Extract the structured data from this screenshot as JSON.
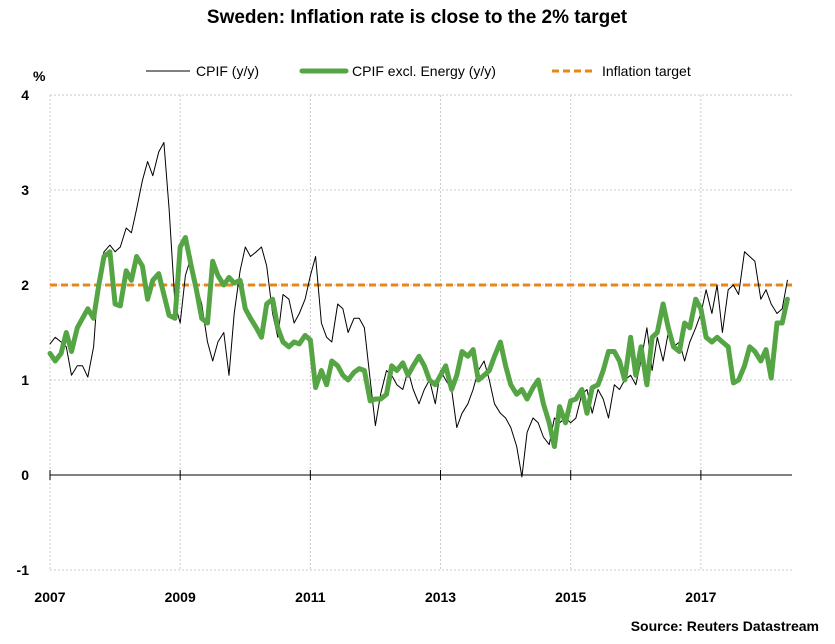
{
  "chart_data": {
    "type": "line",
    "title": "Sweden: Inflation rate is close to the 2% target",
    "ylabel": "%",
    "xlabel": "",
    "ylim": [
      -1,
      4
    ],
    "xlim": [
      2007.0,
      2018.4
    ],
    "y_ticks": [
      -1,
      0,
      1,
      2,
      3,
      4
    ],
    "x_ticks": [
      2007,
      2009,
      2011,
      2013,
      2015,
      2017
    ],
    "grid": "dotted",
    "legend_position": "top",
    "source": "Source: Reuters Datastream",
    "series": [
      {
        "name": "CPIF (y/y)",
        "color": "#000000",
        "points": [
          [
            2007.0,
            1.38
          ],
          [
            2007.08,
            1.45
          ],
          [
            2007.17,
            1.4
          ],
          [
            2007.25,
            1.35
          ],
          [
            2007.33,
            1.05
          ],
          [
            2007.42,
            1.15
          ],
          [
            2007.5,
            1.15
          ],
          [
            2007.58,
            1.03
          ],
          [
            2007.67,
            1.35
          ],
          [
            2007.75,
            2.1
          ],
          [
            2007.83,
            2.35
          ],
          [
            2007.92,
            2.42
          ],
          [
            2008.0,
            2.35
          ],
          [
            2008.08,
            2.4
          ],
          [
            2008.17,
            2.6
          ],
          [
            2008.25,
            2.55
          ],
          [
            2008.33,
            2.8
          ],
          [
            2008.42,
            3.1
          ],
          [
            2008.5,
            3.3
          ],
          [
            2008.58,
            3.15
          ],
          [
            2008.67,
            3.4
          ],
          [
            2008.75,
            3.5
          ],
          [
            2008.83,
            2.8
          ],
          [
            2008.92,
            1.8
          ],
          [
            2009.0,
            1.6
          ],
          [
            2009.08,
            2.1
          ],
          [
            2009.17,
            2.3
          ],
          [
            2009.25,
            2.0
          ],
          [
            2009.33,
            1.8
          ],
          [
            2009.42,
            1.4
          ],
          [
            2009.5,
            1.2
          ],
          [
            2009.58,
            1.4
          ],
          [
            2009.67,
            1.5
          ],
          [
            2009.75,
            1.05
          ],
          [
            2009.83,
            1.7
          ],
          [
            2009.92,
            2.15
          ],
          [
            2010.0,
            2.4
          ],
          [
            2010.08,
            2.3
          ],
          [
            2010.17,
            2.35
          ],
          [
            2010.25,
            2.4
          ],
          [
            2010.33,
            2.2
          ],
          [
            2010.42,
            1.7
          ],
          [
            2010.5,
            1.45
          ],
          [
            2010.58,
            1.9
          ],
          [
            2010.67,
            1.85
          ],
          [
            2010.75,
            1.6
          ],
          [
            2010.83,
            1.7
          ],
          [
            2010.92,
            1.85
          ],
          [
            2011.0,
            2.1
          ],
          [
            2011.08,
            2.3
          ],
          [
            2011.17,
            1.6
          ],
          [
            2011.25,
            1.45
          ],
          [
            2011.33,
            1.4
          ],
          [
            2011.42,
            1.8
          ],
          [
            2011.5,
            1.75
          ],
          [
            2011.58,
            1.5
          ],
          [
            2011.67,
            1.65
          ],
          [
            2011.75,
            1.65
          ],
          [
            2011.83,
            1.55
          ],
          [
            2011.92,
            1.0
          ],
          [
            2012.0,
            0.52
          ],
          [
            2012.08,
            0.85
          ],
          [
            2012.17,
            1.1
          ],
          [
            2012.25,
            1.05
          ],
          [
            2012.33,
            0.95
          ],
          [
            2012.42,
            0.9
          ],
          [
            2012.5,
            1.1
          ],
          [
            2012.58,
            0.9
          ],
          [
            2012.67,
            0.75
          ],
          [
            2012.75,
            0.9
          ],
          [
            2012.83,
            1.0
          ],
          [
            2012.92,
            0.75
          ],
          [
            2013.0,
            1.1
          ],
          [
            2013.08,
            1.0
          ],
          [
            2013.17,
            0.9
          ],
          [
            2013.25,
            0.5
          ],
          [
            2013.33,
            0.65
          ],
          [
            2013.42,
            0.75
          ],
          [
            2013.5,
            0.9
          ],
          [
            2013.58,
            1.1
          ],
          [
            2013.67,
            1.2
          ],
          [
            2013.75,
            1.0
          ],
          [
            2013.83,
            0.75
          ],
          [
            2013.92,
            0.65
          ],
          [
            2014.0,
            0.6
          ],
          [
            2014.08,
            0.5
          ],
          [
            2014.17,
            0.3
          ],
          [
            2014.25,
            -0.02
          ],
          [
            2014.33,
            0.45
          ],
          [
            2014.42,
            0.6
          ],
          [
            2014.5,
            0.55
          ],
          [
            2014.58,
            0.4
          ],
          [
            2014.67,
            0.32
          ],
          [
            2014.75,
            0.6
          ],
          [
            2014.83,
            0.55
          ],
          [
            2014.92,
            0.6
          ],
          [
            2015.0,
            0.55
          ],
          [
            2015.08,
            0.6
          ],
          [
            2015.17,
            0.85
          ],
          [
            2015.25,
            0.9
          ],
          [
            2015.33,
            0.65
          ],
          [
            2015.42,
            0.9
          ],
          [
            2015.5,
            0.8
          ],
          [
            2015.58,
            0.6
          ],
          [
            2015.67,
            0.95
          ],
          [
            2015.75,
            0.9
          ],
          [
            2015.83,
            1.0
          ],
          [
            2015.92,
            1.05
          ],
          [
            2016.0,
            0.95
          ],
          [
            2016.08,
            1.2
          ],
          [
            2016.17,
            1.55
          ],
          [
            2016.25,
            1.1
          ],
          [
            2016.33,
            1.45
          ],
          [
            2016.42,
            1.2
          ],
          [
            2016.5,
            1.5
          ],
          [
            2016.58,
            1.35
          ],
          [
            2016.67,
            1.4
          ],
          [
            2016.75,
            1.2
          ],
          [
            2016.83,
            1.4
          ],
          [
            2016.92,
            1.55
          ],
          [
            2017.0,
            1.7
          ],
          [
            2017.08,
            1.95
          ],
          [
            2017.17,
            1.7
          ],
          [
            2017.25,
            2.0
          ],
          [
            2017.33,
            1.5
          ],
          [
            2017.42,
            1.95
          ],
          [
            2017.5,
            2.0
          ],
          [
            2017.58,
            1.9
          ],
          [
            2017.67,
            2.35
          ],
          [
            2017.75,
            2.3
          ],
          [
            2017.83,
            2.25
          ],
          [
            2017.92,
            1.85
          ],
          [
            2018.0,
            1.95
          ],
          [
            2018.08,
            1.8
          ],
          [
            2018.17,
            1.7
          ],
          [
            2018.25,
            1.75
          ],
          [
            2018.33,
            2.05
          ]
        ]
      },
      {
        "name": "CPIF excl. Energy (y/y)",
        "color": "#55a545",
        "points": [
          [
            2007.0,
            1.28
          ],
          [
            2007.08,
            1.2
          ],
          [
            2007.17,
            1.28
          ],
          [
            2007.25,
            1.5
          ],
          [
            2007.33,
            1.3
          ],
          [
            2007.42,
            1.55
          ],
          [
            2007.5,
            1.65
          ],
          [
            2007.58,
            1.75
          ],
          [
            2007.67,
            1.65
          ],
          [
            2007.75,
            2.0
          ],
          [
            2007.83,
            2.3
          ],
          [
            2007.92,
            2.35
          ],
          [
            2008.0,
            1.8
          ],
          [
            2008.08,
            1.78
          ],
          [
            2008.17,
            2.15
          ],
          [
            2008.25,
            2.05
          ],
          [
            2008.33,
            2.3
          ],
          [
            2008.42,
            2.2
          ],
          [
            2008.5,
            1.85
          ],
          [
            2008.58,
            2.05
          ],
          [
            2008.67,
            2.12
          ],
          [
            2008.75,
            1.9
          ],
          [
            2008.83,
            1.68
          ],
          [
            2008.92,
            1.65
          ],
          [
            2009.0,
            2.4
          ],
          [
            2009.08,
            2.5
          ],
          [
            2009.17,
            2.2
          ],
          [
            2009.25,
            1.95
          ],
          [
            2009.33,
            1.65
          ],
          [
            2009.42,
            1.6
          ],
          [
            2009.5,
            2.25
          ],
          [
            2009.58,
            2.1
          ],
          [
            2009.67,
            2.0
          ],
          [
            2009.75,
            2.08
          ],
          [
            2009.83,
            2.02
          ],
          [
            2009.92,
            2.05
          ],
          [
            2010.0,
            1.75
          ],
          [
            2010.08,
            1.65
          ],
          [
            2010.17,
            1.55
          ],
          [
            2010.25,
            1.45
          ],
          [
            2010.33,
            1.8
          ],
          [
            2010.42,
            1.85
          ],
          [
            2010.5,
            1.55
          ],
          [
            2010.58,
            1.4
          ],
          [
            2010.67,
            1.35
          ],
          [
            2010.75,
            1.4
          ],
          [
            2010.83,
            1.38
          ],
          [
            2010.92,
            1.47
          ],
          [
            2011.0,
            1.42
          ],
          [
            2011.08,
            0.92
          ],
          [
            2011.17,
            1.1
          ],
          [
            2011.25,
            0.95
          ],
          [
            2011.33,
            1.2
          ],
          [
            2011.42,
            1.15
          ],
          [
            2011.5,
            1.05
          ],
          [
            2011.58,
            1.0
          ],
          [
            2011.67,
            1.08
          ],
          [
            2011.75,
            1.12
          ],
          [
            2011.83,
            1.1
          ],
          [
            2011.92,
            0.78
          ],
          [
            2012.0,
            0.8
          ],
          [
            2012.08,
            0.8
          ],
          [
            2012.17,
            0.85
          ],
          [
            2012.25,
            1.15
          ],
          [
            2012.33,
            1.1
          ],
          [
            2012.42,
            1.18
          ],
          [
            2012.5,
            1.05
          ],
          [
            2012.58,
            1.15
          ],
          [
            2012.67,
            1.25
          ],
          [
            2012.75,
            1.15
          ],
          [
            2012.83,
            1.0
          ],
          [
            2012.92,
            0.95
          ],
          [
            2013.0,
            1.05
          ],
          [
            2013.08,
            1.15
          ],
          [
            2013.17,
            0.9
          ],
          [
            2013.25,
            1.05
          ],
          [
            2013.33,
            1.3
          ],
          [
            2013.42,
            1.25
          ],
          [
            2013.5,
            1.32
          ],
          [
            2013.58,
            1.0
          ],
          [
            2013.67,
            1.05
          ],
          [
            2013.75,
            1.1
          ],
          [
            2013.83,
            1.25
          ],
          [
            2013.92,
            1.4
          ],
          [
            2014.0,
            1.15
          ],
          [
            2014.08,
            0.95
          ],
          [
            2014.17,
            0.85
          ],
          [
            2014.25,
            0.9
          ],
          [
            2014.33,
            0.8
          ],
          [
            2014.42,
            0.92
          ],
          [
            2014.5,
            1.0
          ],
          [
            2014.58,
            0.75
          ],
          [
            2014.67,
            0.55
          ],
          [
            2014.75,
            0.3
          ],
          [
            2014.83,
            0.72
          ],
          [
            2014.92,
            0.55
          ],
          [
            2015.0,
            0.78
          ],
          [
            2015.08,
            0.8
          ],
          [
            2015.17,
            0.9
          ],
          [
            2015.25,
            0.65
          ],
          [
            2015.33,
            0.92
          ],
          [
            2015.42,
            0.95
          ],
          [
            2015.5,
            1.1
          ],
          [
            2015.58,
            1.3
          ],
          [
            2015.67,
            1.3
          ],
          [
            2015.75,
            1.2
          ],
          [
            2015.83,
            1.0
          ],
          [
            2015.92,
            1.45
          ],
          [
            2016.0,
            1.05
          ],
          [
            2016.08,
            1.35
          ],
          [
            2016.17,
            0.95
          ],
          [
            2016.25,
            1.45
          ],
          [
            2016.33,
            1.5
          ],
          [
            2016.42,
            1.8
          ],
          [
            2016.5,
            1.55
          ],
          [
            2016.58,
            1.35
          ],
          [
            2016.67,
            1.3
          ],
          [
            2016.75,
            1.6
          ],
          [
            2016.83,
            1.55
          ],
          [
            2016.92,
            1.85
          ],
          [
            2017.0,
            1.75
          ],
          [
            2017.08,
            1.45
          ],
          [
            2017.17,
            1.4
          ],
          [
            2017.25,
            1.45
          ],
          [
            2017.33,
            1.4
          ],
          [
            2017.42,
            1.35
          ],
          [
            2017.5,
            0.97
          ],
          [
            2017.58,
            1.0
          ],
          [
            2017.67,
            1.15
          ],
          [
            2017.75,
            1.35
          ],
          [
            2017.83,
            1.3
          ],
          [
            2017.92,
            1.2
          ],
          [
            2018.0,
            1.32
          ],
          [
            2018.08,
            1.02
          ],
          [
            2018.17,
            1.6
          ],
          [
            2018.25,
            1.6
          ],
          [
            2018.33,
            1.85
          ]
        ]
      }
    ],
    "reference_lines": [
      {
        "name": "Inflation target",
        "y": 2,
        "color": "#e8861a",
        "style": "dashed"
      }
    ],
    "legend": [
      {
        "label": "CPIF (y/y)",
        "color": "#000000",
        "style": "thin"
      },
      {
        "label": "CPIF excl. Energy (y/y)",
        "color": "#55a545",
        "style": "thick"
      },
      {
        "label": "Inflation target",
        "color": "#e8861a",
        "style": "dashed"
      }
    ]
  }
}
